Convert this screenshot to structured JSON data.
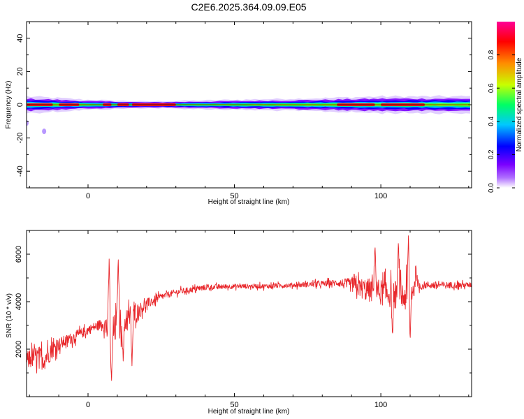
{
  "chart_data": [
    {
      "type": "heatmap",
      "title": "C2E6.2025.364.09.09.E05",
      "xlabel": "Height of straight line (km)",
      "ylabel": "Frequency (Hz)",
      "xlim": [
        -21,
        131
      ],
      "ylim": [
        -50,
        50
      ],
      "xticks": [
        "0",
        "50",
        "100"
      ],
      "yticks": [
        "-40",
        "-20",
        "0",
        "20",
        "40"
      ],
      "colorbar": {
        "label": "Normalized spectral amplitude",
        "range": [
          0,
          1
        ],
        "ticks": [
          "0.0",
          "0.2",
          "0.4",
          "0.6",
          "0.8"
        ],
        "colors": [
          "#ffffff",
          "#7b00ff",
          "#0000ff",
          "#00c8ff",
          "#00ff64",
          "#c8ff00",
          "#ff8c00",
          "#ff0000",
          "#ff0096"
        ]
      },
      "band": {
        "center_hz": 0,
        "halfwidth_hz": [
          [
            -21,
            5
          ],
          [
            -10,
            4
          ],
          [
            0,
            3
          ],
          [
            20,
            2
          ],
          [
            50,
            3
          ],
          [
            80,
            4
          ],
          [
            100,
            5
          ],
          [
            131,
            5
          ]
        ],
        "peak_segments_km": [
          [
            -21,
            -12
          ],
          [
            -10,
            -3
          ],
          [
            5,
            8
          ],
          [
            10,
            14
          ],
          [
            15,
            30
          ],
          [
            85,
            98
          ],
          [
            100,
            115
          ]
        ],
        "outliers": [
          [
            -21,
            -11
          ],
          [
            -15,
            -16
          ]
        ]
      }
    },
    {
      "type": "line",
      "xlabel": "Height of straight line (km)",
      "ylabel": "SNR (10 * v/v)",
      "xlim": [
        -21,
        131
      ],
      "ylim": [
        0,
        7000
      ],
      "xticks": [
        "0",
        "50",
        "100"
      ],
      "yticks": [
        "2000",
        "4000",
        "6000"
      ],
      "line_color": "#e8262a",
      "envelope": [
        [
          -21,
          1500
        ],
        [
          -18,
          1700
        ],
        [
          -15,
          1600
        ],
        [
          -12,
          2000
        ],
        [
          -10,
          2200
        ],
        [
          -5,
          2500
        ],
        [
          0,
          2800
        ],
        [
          5,
          3100
        ],
        [
          8,
          2600
        ],
        [
          10,
          3000
        ],
        [
          15,
          3400
        ],
        [
          20,
          3900
        ],
        [
          25,
          4200
        ],
        [
          30,
          4400
        ],
        [
          35,
          4500
        ],
        [
          40,
          4600
        ],
        [
          50,
          4650
        ],
        [
          60,
          4650
        ],
        [
          70,
          4700
        ],
        [
          80,
          4750
        ],
        [
          85,
          4800
        ],
        [
          90,
          4700
        ],
        [
          95,
          4500
        ],
        [
          100,
          4400
        ],
        [
          105,
          4300
        ],
        [
          108,
          4200
        ],
        [
          110,
          4500
        ],
        [
          115,
          4700
        ],
        [
          120,
          4700
        ],
        [
          131,
          4700
        ]
      ],
      "noise": [
        [
          -21,
          700
        ],
        [
          -15,
          900
        ],
        [
          -10,
          500
        ],
        [
          0,
          350
        ],
        [
          5,
          400
        ],
        [
          7,
          1300
        ],
        [
          10,
          1200
        ],
        [
          14,
          1000
        ],
        [
          18,
          500
        ],
        [
          25,
          250
        ],
        [
          35,
          220
        ],
        [
          50,
          180
        ],
        [
          70,
          180
        ],
        [
          85,
          250
        ],
        [
          90,
          550
        ],
        [
          95,
          900
        ],
        [
          100,
          1000
        ],
        [
          105,
          1100
        ],
        [
          110,
          1300
        ],
        [
          113,
          300
        ],
        [
          131,
          200
        ]
      ],
      "features": [
        {
          "x": 7.2,
          "y": 5800
        },
        {
          "x": 8.0,
          "y": 500
        },
        {
          "x": 10.3,
          "y": 5900
        },
        {
          "x": 12.0,
          "y": 1500
        },
        {
          "x": 15.0,
          "y": 1300
        },
        {
          "x": 98.0,
          "y": 6500
        },
        {
          "x": 104.0,
          "y": 2500
        },
        {
          "x": 106.0,
          "y": 6600
        },
        {
          "x": 109.5,
          "y": 7000
        },
        {
          "x": 110.0,
          "y": 2300
        },
        {
          "x": 112.0,
          "y": 5600
        }
      ]
    }
  ]
}
